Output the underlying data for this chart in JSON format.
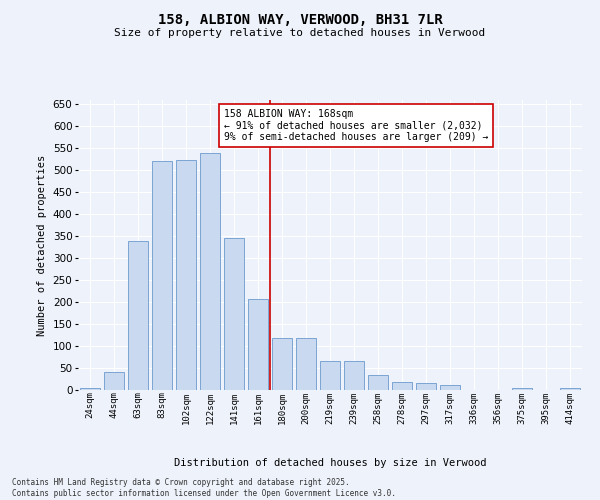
{
  "title": "158, ALBION WAY, VERWOOD, BH31 7LR",
  "subtitle": "Size of property relative to detached houses in Verwood",
  "xlabel": "Distribution of detached houses by size in Verwood",
  "ylabel": "Number of detached properties",
  "footer": "Contains HM Land Registry data © Crown copyright and database right 2025.\nContains public sector information licensed under the Open Government Licence v3.0.",
  "annotation_title": "158 ALBION WAY: 168sqm",
  "annotation_line1": "← 91% of detached houses are smaller (2,032)",
  "annotation_line2": "9% of semi-detached houses are larger (209) →",
  "bar_color": "#c9d9f0",
  "bar_edge_color": "#7ba4d4",
  "marker_color": "#cc0000",
  "background_color": "#eef2fb",
  "grid_color": "#ffffff",
  "categories": [
    "24sqm",
    "44sqm",
    "63sqm",
    "83sqm",
    "102sqm",
    "122sqm",
    "141sqm",
    "161sqm",
    "180sqm",
    "200sqm",
    "219sqm",
    "239sqm",
    "258sqm",
    "278sqm",
    "297sqm",
    "317sqm",
    "336sqm",
    "356sqm",
    "375sqm",
    "395sqm",
    "414sqm"
  ],
  "values": [
    5,
    42,
    340,
    522,
    524,
    540,
    345,
    207,
    118,
    118,
    65,
    65,
    35,
    18,
    15,
    12,
    1,
    0,
    4,
    0,
    4
  ],
  "ylim": [
    0,
    660
  ],
  "yticks": [
    0,
    50,
    100,
    150,
    200,
    250,
    300,
    350,
    400,
    450,
    500,
    550,
    600,
    650
  ]
}
